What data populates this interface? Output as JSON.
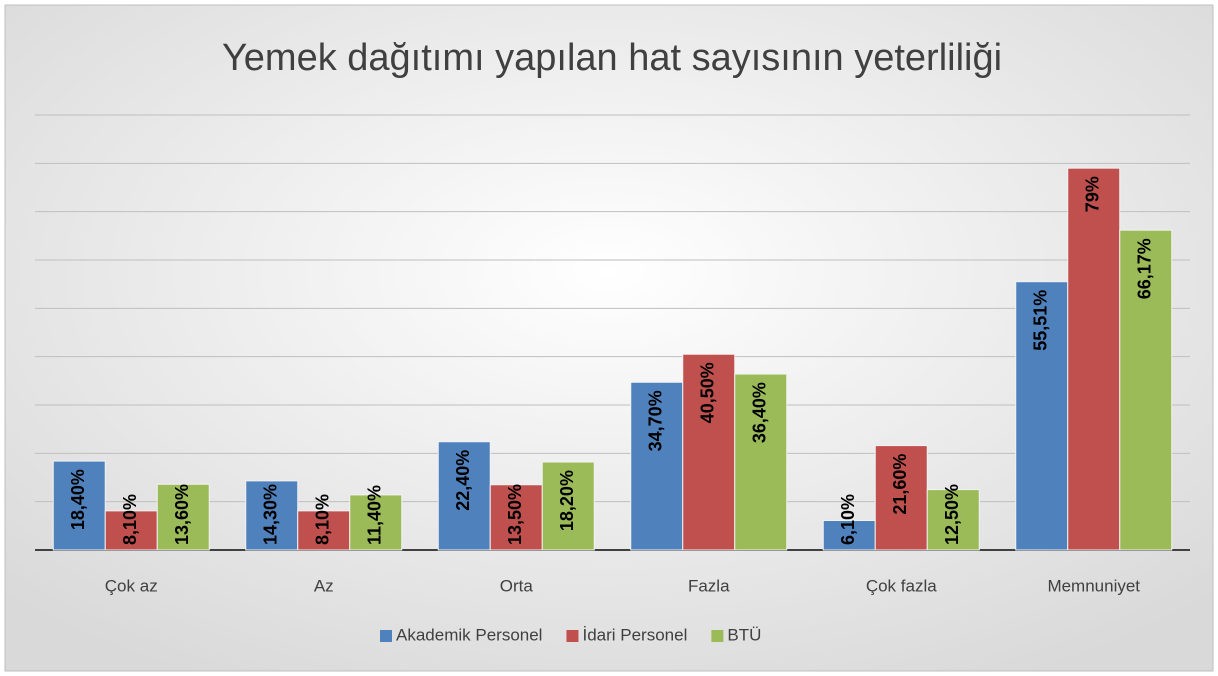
{
  "chart_data": {
    "type": "bar",
    "title": "Yemek dağıtımı yapılan hat sayısının yeterliliği",
    "categories": [
      "Çok az",
      "Az",
      "Orta",
      "Fazla",
      "Çok fazla",
      "Memnuniyet"
    ],
    "series": [
      {
        "name": "Akademik Personel",
        "color": "#4f81bd",
        "values": [
          18.4,
          14.3,
          22.4,
          34.7,
          6.1,
          55.51
        ],
        "value_labels": [
          "18,40%",
          "14,30%",
          "22,40%",
          "34,70%",
          "6,10%",
          "55,51%"
        ]
      },
      {
        "name": "İdari Personel",
        "color": "#c0504d",
        "values": [
          8.1,
          8.1,
          13.5,
          40.5,
          21.6,
          79
        ],
        "value_labels": [
          "8,10%",
          "8,10%",
          "13,50%",
          "40,50%",
          "21,60%",
          "79%"
        ]
      },
      {
        "name": "BTÜ",
        "color": "#9bbb59",
        "values": [
          13.6,
          11.4,
          18.2,
          36.4,
          12.5,
          66.17
        ],
        "value_labels": [
          "13,60%",
          "11,40%",
          "18,20%",
          "36,40%",
          "12,50%",
          "66,17%"
        ]
      }
    ],
    "ylim": [
      0,
      90
    ],
    "yticks": [
      0,
      10,
      20,
      30,
      40,
      50,
      60,
      70,
      80,
      90
    ],
    "grid": true,
    "legend": "bottom"
  }
}
